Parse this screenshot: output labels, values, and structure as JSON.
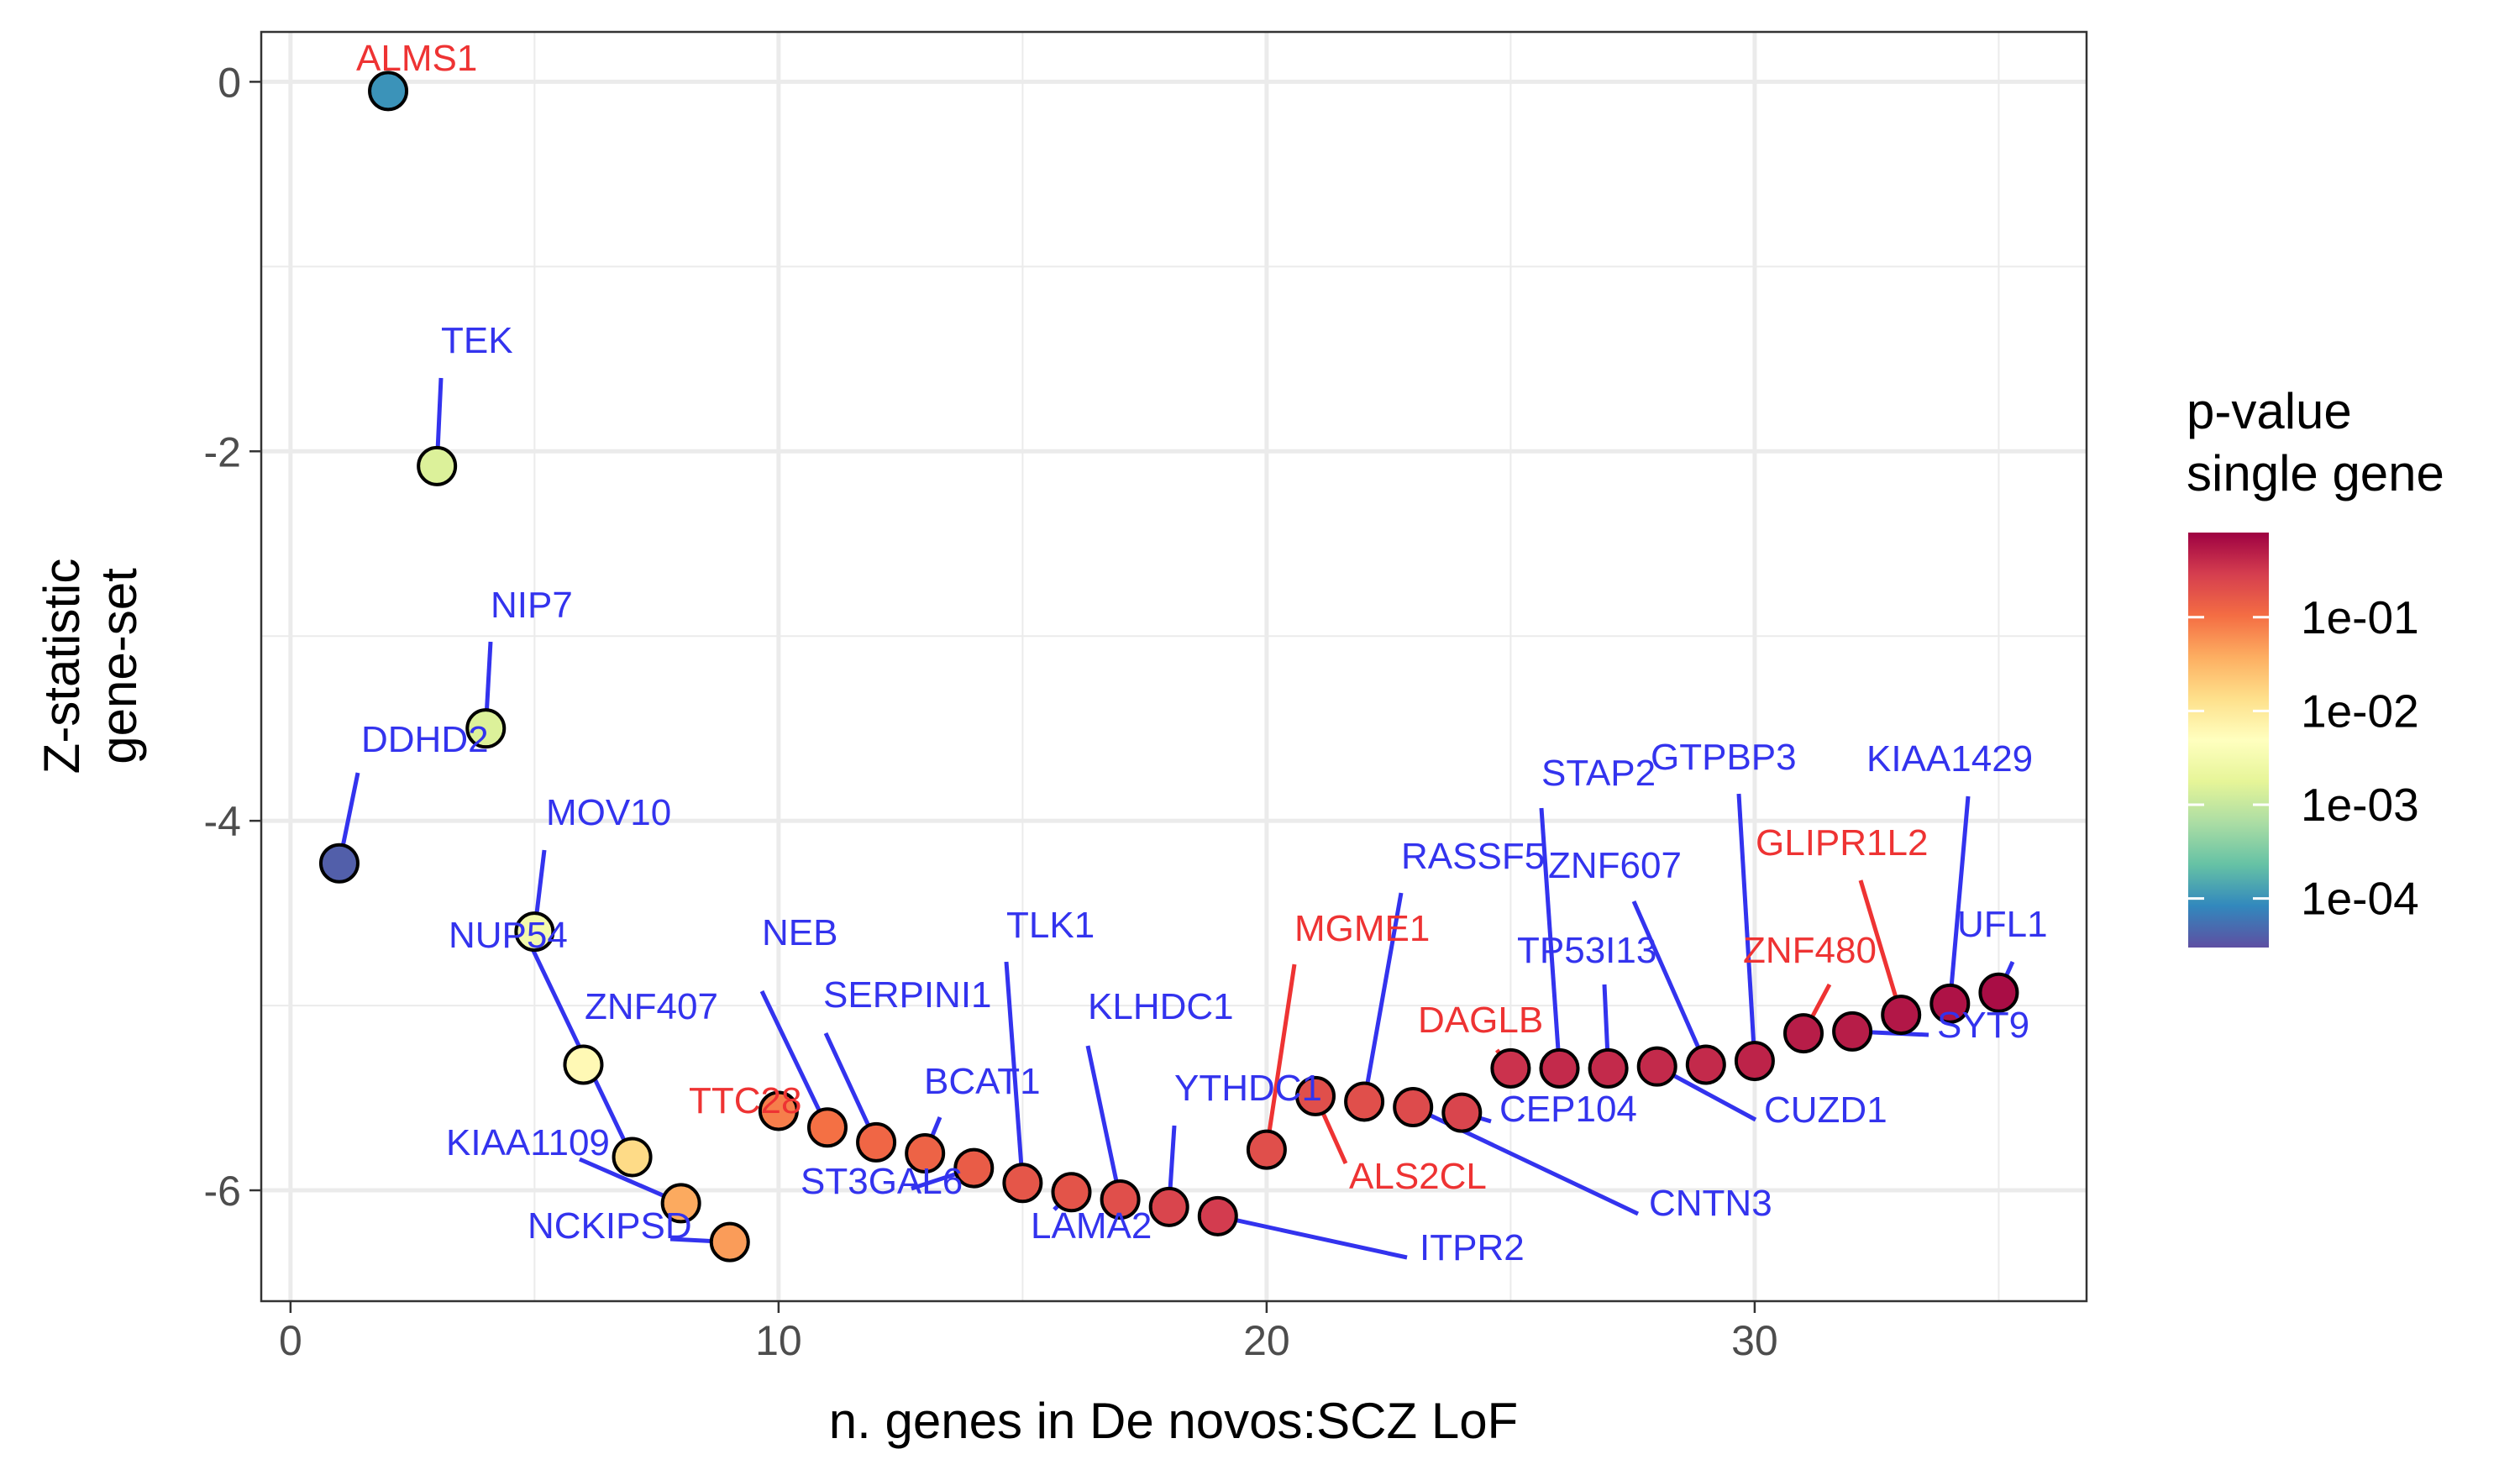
{
  "chart_data": {
    "type": "scatter",
    "title": "",
    "xlabel": "n. genes in De novos:SCZ LoF",
    "ylabel_lines": [
      "Z-statistic",
      "gene-set"
    ],
    "xlim": [
      -0.6,
      36.8
    ],
    "ylim": [
      -6.6,
      0.27
    ],
    "x_ticks": [
      0,
      10,
      20,
      30
    ],
    "y_ticks": [
      0,
      -2,
      -4,
      -6
    ],
    "y_tick_labels": [
      "0",
      "-2",
      "-4",
      "-6"
    ],
    "grid": true,
    "legend": {
      "title_lines": [
        "p-value",
        "single gene"
      ],
      "position": "right",
      "scale": "log10",
      "range": [
        3e-05,
        0.8
      ],
      "ticks": [
        0.1,
        0.01,
        0.001,
        0.0001
      ],
      "tick_labels": [
        "1e-01",
        "1e-02",
        "1e-03",
        "1e-04"
      ]
    },
    "points": [
      {
        "x": 1,
        "y": -4.23,
        "gene": "DDHD2",
        "pvalue": 4e-05,
        "label_color": "#3333ee"
      },
      {
        "x": 2,
        "y": -0.05,
        "gene": "ALMS1",
        "pvalue": 0.0001,
        "label_color": "#ee3333"
      },
      {
        "x": 3,
        "y": -2.08,
        "gene": "TEK",
        "pvalue": 0.0015,
        "label_color": "#3333ee"
      },
      {
        "x": 4,
        "y": -3.5,
        "gene": "NIP7",
        "pvalue": 0.0015,
        "label_color": "#3333ee"
      },
      {
        "x": 5,
        "y": -4.6,
        "gene": "MOV10",
        "pvalue": 0.003,
        "label_color": "#3333ee"
      },
      {
        "x": 6,
        "y": -5.32,
        "gene": "ZNF407",
        "pvalue": 0.006,
        "label_color": "#3333ee"
      },
      {
        "x": 7,
        "y": -5.82,
        "gene": "NUP54",
        "pvalue": 0.015,
        "label_color": "#3333ee"
      },
      {
        "x": 8,
        "y": -6.07,
        "gene": "KIAA1109",
        "pvalue": 0.04,
        "label_color": "#3333ee"
      },
      {
        "x": 9,
        "y": -6.28,
        "gene": "NCKIPSD",
        "pvalue": 0.05,
        "label_color": "#3333ee"
      },
      {
        "x": 10,
        "y": -5.57,
        "gene": "TTC28",
        "pvalue": 0.08,
        "label_color": "#ee3333"
      },
      {
        "x": 11,
        "y": -5.66,
        "gene": "NEB",
        "pvalue": 0.1,
        "label_color": "#3333ee"
      },
      {
        "x": 12,
        "y": -5.74,
        "gene": "SERPINI1",
        "pvalue": 0.12,
        "label_color": "#3333ee"
      },
      {
        "x": 13,
        "y": -5.8,
        "gene": "BCAT1",
        "pvalue": 0.13,
        "label_color": "#3333ee"
      },
      {
        "x": 14,
        "y": -5.88,
        "gene": "ST3GAL6",
        "pvalue": 0.15,
        "label_color": "#3333ee"
      },
      {
        "x": 15,
        "y": -5.96,
        "gene": "TLK1",
        "pvalue": 0.17,
        "label_color": "#3333ee"
      },
      {
        "x": 16,
        "y": -6.01,
        "gene": "LAMA2",
        "pvalue": 0.18,
        "label_color": "#3333ee"
      },
      {
        "x": 17,
        "y": -6.05,
        "gene": "KLHDC1",
        "pvalue": 0.2,
        "label_color": "#3333ee"
      },
      {
        "x": 18,
        "y": -6.09,
        "gene": "YTHDC1",
        "pvalue": 0.25,
        "label_color": "#3333ee"
      },
      {
        "x": 19,
        "y": -6.14,
        "gene": "ITPR2",
        "pvalue": 0.3,
        "label_color": "#3333ee"
      },
      {
        "x": 20,
        "y": -5.78,
        "gene": "MGME1",
        "pvalue": 0.2,
        "label_color": "#ee3333"
      },
      {
        "x": 21,
        "y": -5.49,
        "gene": "ALS2CL",
        "pvalue": 0.2,
        "label_color": "#ee3333"
      },
      {
        "x": 22,
        "y": -5.52,
        "gene": "RASSF5",
        "pvalue": 0.2,
        "label_color": "#3333ee"
      },
      {
        "x": 23,
        "y": -5.55,
        "gene": "CNTN3",
        "pvalue": 0.22,
        "label_color": "#3333ee"
      },
      {
        "x": 24,
        "y": -5.58,
        "gene": "CEP104",
        "pvalue": 0.25,
        "label_color": "#3333ee"
      },
      {
        "x": 25,
        "y": -5.34,
        "gene": "DAGLB",
        "pvalue": 0.35,
        "label_color": "#ee3333"
      },
      {
        "x": 26,
        "y": -5.34,
        "gene": "STAP2",
        "pvalue": 0.4,
        "label_color": "#3333ee"
      },
      {
        "x": 27,
        "y": -5.34,
        "gene": "TP53I13",
        "pvalue": 0.4,
        "label_color": "#3333ee"
      },
      {
        "x": 28,
        "y": -5.33,
        "gene": "CUZD1",
        "pvalue": 0.4,
        "label_color": "#3333ee"
      },
      {
        "x": 29,
        "y": -5.32,
        "gene": "ZNF607",
        "pvalue": 0.4,
        "label_color": "#3333ee"
      },
      {
        "x": 30,
        "y": -5.3,
        "gene": "GTPBP3",
        "pvalue": 0.45,
        "label_color": "#3333ee"
      },
      {
        "x": 31,
        "y": -5.15,
        "gene": "ZNF480",
        "pvalue": 0.5,
        "label_color": "#ee3333"
      },
      {
        "x": 32,
        "y": -5.14,
        "gene": "SYT9",
        "pvalue": 0.5,
        "label_color": "#3333ee"
      },
      {
        "x": 33,
        "y": -5.05,
        "gene": "GLIPR1L2",
        "pvalue": 0.55,
        "label_color": "#ee3333"
      },
      {
        "x": 34,
        "y": -4.99,
        "gene": "KIAA1429",
        "pvalue": 0.6,
        "label_color": "#3333ee"
      },
      {
        "x": 35,
        "y": -4.93,
        "gene": "UFL1",
        "pvalue": 0.65,
        "label_color": "#3333ee"
      }
    ]
  }
}
